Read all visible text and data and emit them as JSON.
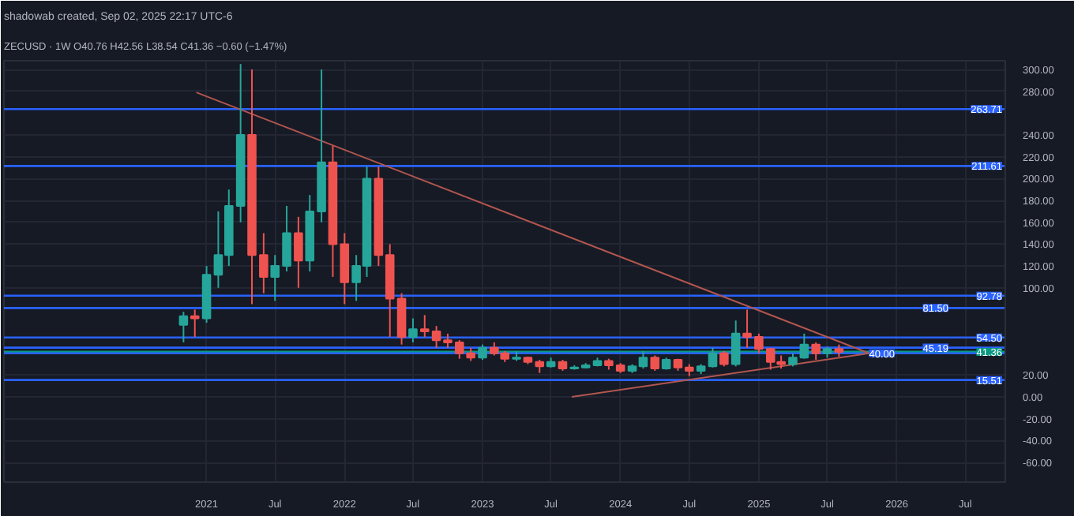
{
  "chart_data": {
    "type": "candlestick",
    "title": "ZECUSD · 1W  O40.76 H42.56 L38.54 C41.36 −0.60 (−1.47%)",
    "subtitle": "shadowab created, Sep 02, 2025 22:17 UTC-6",
    "x": [
      "2020-11",
      "2020-12",
      "2021-01",
      "2021-02",
      "2021-03",
      "2021-04",
      "2021-05",
      "2021-06",
      "2021-07",
      "2021-08",
      "2021-09",
      "2021-10",
      "2021-11",
      "2021-12",
      "2022-01",
      "2022-02",
      "2022-03",
      "2022-04",
      "2022-05",
      "2022-06",
      "2022-07",
      "2022-08",
      "2022-09",
      "2022-10",
      "2022-11",
      "2022-12",
      "2023-01",
      "2023-02",
      "2023-03",
      "2023-04",
      "2023-05",
      "2023-06",
      "2023-07",
      "2023-08",
      "2023-09",
      "2023-10",
      "2023-11",
      "2023-12",
      "2024-01",
      "2024-02",
      "2024-03",
      "2024-04",
      "2024-05",
      "2024-06",
      "2024-07",
      "2024-08",
      "2024-09",
      "2024-10",
      "2024-11",
      "2024-12",
      "2025-01",
      "2025-02",
      "2025-03",
      "2025-04",
      "2025-05",
      "2025-06",
      "2025-07",
      "2025-08"
    ],
    "ohlc": [
      [
        66,
        78,
        50,
        74
      ],
      [
        74,
        80,
        55,
        72
      ],
      [
        72,
        120,
        68,
        112
      ],
      [
        112,
        170,
        100,
        130
      ],
      [
        130,
        190,
        120,
        175
      ],
      [
        175,
        305,
        160,
        240
      ],
      [
        240,
        300,
        85,
        130
      ],
      [
        130,
        150,
        95,
        110
      ],
      [
        110,
        130,
        88,
        120
      ],
      [
        120,
        175,
        115,
        150
      ],
      [
        150,
        165,
        100,
        125
      ],
      [
        125,
        185,
        115,
        170
      ],
      [
        170,
        300,
        160,
        215
      ],
      [
        215,
        230,
        110,
        140
      ],
      [
        140,
        150,
        85,
        105
      ],
      [
        105,
        130,
        88,
        120
      ],
      [
        120,
        211,
        110,
        200
      ],
      [
        200,
        211,
        120,
        130
      ],
      [
        130,
        140,
        55,
        90
      ],
      [
        90,
        95,
        48,
        55
      ],
      [
        55,
        72,
        50,
        62
      ],
      [
        62,
        75,
        55,
        60
      ],
      [
        60,
        65,
        45,
        52
      ],
      [
        52,
        58,
        45,
        50
      ],
      [
        50,
        52,
        35,
        40
      ],
      [
        40,
        45,
        33,
        36
      ],
      [
        36,
        48,
        34,
        45
      ],
      [
        45,
        50,
        38,
        40
      ],
      [
        40,
        42,
        32,
        35
      ],
      [
        35,
        42,
        33,
        36
      ],
      [
        36,
        37,
        30,
        32
      ],
      [
        32,
        34,
        22,
        28
      ],
      [
        28,
        36,
        27,
        32
      ],
      [
        32,
        34,
        24,
        26
      ],
      [
        26,
        29,
        25,
        27
      ],
      [
        27,
        31,
        26,
        29
      ],
      [
        29,
        36,
        28,
        33
      ],
      [
        33,
        35,
        25,
        29
      ],
      [
        29,
        31,
        22,
        24
      ],
      [
        24,
        30,
        22,
        28
      ],
      [
        28,
        42,
        26,
        36
      ],
      [
        36,
        38,
        24,
        26
      ],
      [
        26,
        36,
        25,
        34
      ],
      [
        34,
        35,
        24,
        27
      ],
      [
        27,
        30,
        19,
        24
      ],
      [
        24,
        30,
        21,
        28
      ],
      [
        28,
        45,
        27,
        40
      ],
      [
        40,
        42,
        28,
        30
      ],
      [
        30,
        70,
        28,
        58
      ],
      [
        58,
        80,
        45,
        55
      ],
      [
        55,
        58,
        40,
        44
      ],
      [
        44,
        45,
        25,
        32
      ],
      [
        32,
        38,
        26,
        30
      ],
      [
        30,
        40,
        28,
        36
      ],
      [
        36,
        58,
        35,
        48
      ],
      [
        48,
        50,
        34,
        40
      ],
      [
        40,
        46,
        36,
        44
      ],
      [
        44,
        48,
        37,
        41.36
      ]
    ],
    "colors": [
      "#26a69a",
      "#ef5350",
      "#26a69a",
      "#26a69a",
      "#26a69a",
      "#26a69a",
      "#ef5350",
      "#ef5350",
      "#26a69a",
      "#26a69a",
      "#ef5350",
      "#26a69a",
      "#26a69a",
      "#ef5350",
      "#ef5350",
      "#26a69a",
      "#26a69a",
      "#ef5350",
      "#ef5350",
      "#ef5350",
      "#26a69a",
      "#ef5350",
      "#ef5350",
      "#ef5350",
      "#ef5350",
      "#ef5350",
      "#26a69a",
      "#ef5350",
      "#ef5350",
      "#26a69a",
      "#ef5350",
      "#ef5350",
      "#26a69a",
      "#ef5350",
      "#26a69a",
      "#26a69a",
      "#26a69a",
      "#ef5350",
      "#ef5350",
      "#26a69a",
      "#26a69a",
      "#ef5350",
      "#26a69a",
      "#ef5350",
      "#ef5350",
      "#26a69a",
      "#26a69a",
      "#ef5350",
      "#26a69a",
      "#ef5350",
      "#ef5350",
      "#ef5350",
      "#ef5350",
      "#26a69a",
      "#26a69a",
      "#ef5350",
      "#26a69a",
      "#ef5350"
    ],
    "series": [
      {
        "type": "line",
        "color": "#b2564f",
        "x": [
          "2020-12-05",
          "2025-10-20"
        ],
        "values": [
          279,
          40
        ]
      },
      {
        "type": "line",
        "color": "#b2564f",
        "x": [
          "2023-08-25",
          "2025-10-20"
        ],
        "values": [
          0,
          40
        ]
      }
    ],
    "ref_lines": [
      {
        "axis": "y",
        "value": 263.71,
        "label": "263.71",
        "color": "#2962ff"
      },
      {
        "axis": "y",
        "value": 211.61,
        "label": "211.61",
        "color": "#2962ff"
      },
      {
        "axis": "y",
        "value": 92.78,
        "label": "92.78",
        "color": "#2962ff"
      },
      {
        "axis": "y",
        "value": 81.5,
        "label": "81.50",
        "color": "#2962ff"
      },
      {
        "axis": "y",
        "value": 54.5,
        "label": "54.50",
        "color": "#2962ff"
      },
      {
        "axis": "y",
        "value": 45.19,
        "label": "45.19",
        "color": "#2962ff"
      },
      {
        "axis": "y",
        "value": 41.36,
        "label": "41.36",
        "color": "#089981"
      },
      {
        "axis": "y",
        "value": 40,
        "label": "40.00",
        "color": "#2962ff"
      },
      {
        "axis": "y",
        "value": 15.51,
        "label": "15.51",
        "color": "#2962ff"
      }
    ],
    "xlim": [
      "2019-07-15",
      "2026-10-15"
    ],
    "xticks": [
      {
        "value": "2021-01-01",
        "label": "2021"
      },
      {
        "value": "2021-07-01",
        "label": "Jul"
      },
      {
        "value": "2022-01-01",
        "label": "2022"
      },
      {
        "value": "2022-07-01",
        "label": "Jul"
      },
      {
        "value": "2023-01-01",
        "label": "2023"
      },
      {
        "value": "2023-07-01",
        "label": "Jul"
      },
      {
        "value": "2024-01-01",
        "label": "2024"
      },
      {
        "value": "2024-07-01",
        "label": "Jul"
      },
      {
        "value": "2025-01-01",
        "label": "2025"
      },
      {
        "value": "2025-07-01",
        "label": "Jul"
      },
      {
        "value": "2026-01-01",
        "label": "2026"
      },
      {
        "value": "2026-07-01",
        "label": "Jul"
      }
    ],
    "ylim": [
      -78,
      308
    ],
    "yticks": [
      {
        "value": 300,
        "label": "300.00"
      },
      {
        "value": 280,
        "label": "280.00"
      },
      {
        "value": 240,
        "label": "240.00"
      },
      {
        "value": 220,
        "label": "220.00"
      },
      {
        "value": 200,
        "label": "200.00"
      },
      {
        "value": 180,
        "label": "180.00"
      },
      {
        "value": 160,
        "label": "160.00"
      },
      {
        "value": 140,
        "label": "140.00"
      },
      {
        "value": 120,
        "label": "120.00"
      },
      {
        "value": 100,
        "label": "100.00"
      },
      {
        "value": 20,
        "label": "20.00"
      },
      {
        "value": 0,
        "label": "0.00"
      },
      {
        "value": -20,
        "label": "-20.00"
      },
      {
        "value": -40,
        "label": "-40.00"
      },
      {
        "value": -60,
        "label": "-60.00"
      }
    ],
    "grid": true
  }
}
